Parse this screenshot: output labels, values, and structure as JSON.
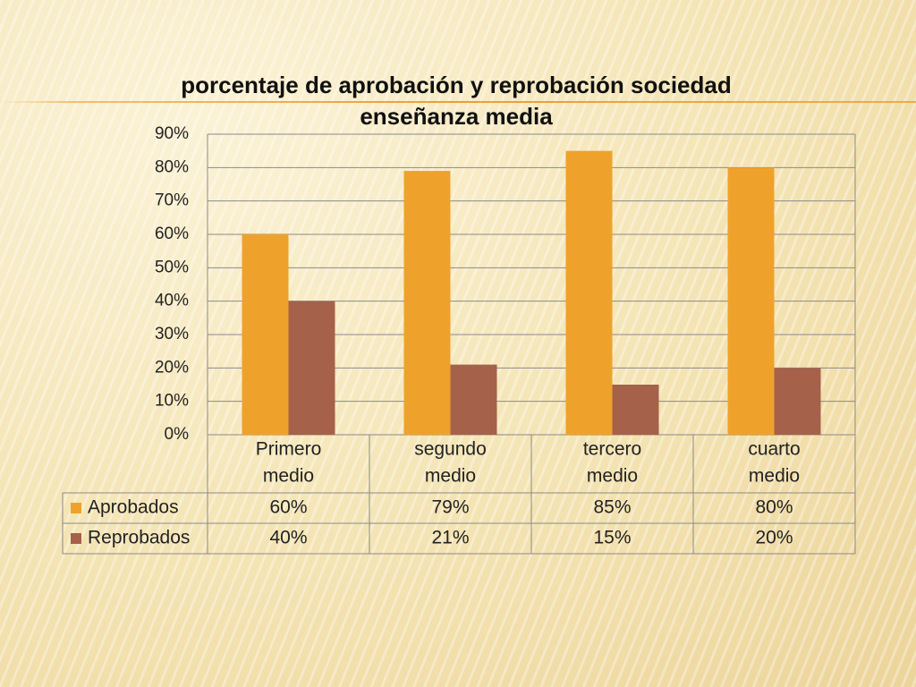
{
  "chart_data": {
    "type": "bar",
    "title": "porcentaje de aprobación y reprobación sociedad enseñanza media",
    "categories": [
      "Primero medio",
      "segundo medio",
      "tercero medio",
      "cuarto medio"
    ],
    "category_lines": [
      [
        "Primero",
        "medio"
      ],
      [
        "segundo",
        "medio"
      ],
      [
        "tercero",
        "medio"
      ],
      [
        "cuarto",
        "medio"
      ]
    ],
    "series": [
      {
        "name": "Aprobados",
        "values": [
          60,
          79,
          85,
          80
        ],
        "labels": [
          "60%",
          "79%",
          "85%",
          "80%"
        ],
        "color": "#eea22c"
      },
      {
        "name": "Reprobados",
        "values": [
          40,
          21,
          15,
          20
        ],
        "labels": [
          "40%",
          "21%",
          "15%",
          "20%"
        ],
        "color": "#a5614a"
      }
    ],
    "ylim": [
      0,
      90
    ],
    "y_ticks": [
      "0%",
      "10%",
      "20%",
      "30%",
      "40%",
      "50%",
      "60%",
      "70%",
      "80%",
      "90%"
    ],
    "grid": true,
    "legend": "data-table",
    "xlabel": "",
    "ylabel": ""
  },
  "colors": {
    "gridline": "#8a8a8a",
    "table_border": "#8a8a8a"
  }
}
